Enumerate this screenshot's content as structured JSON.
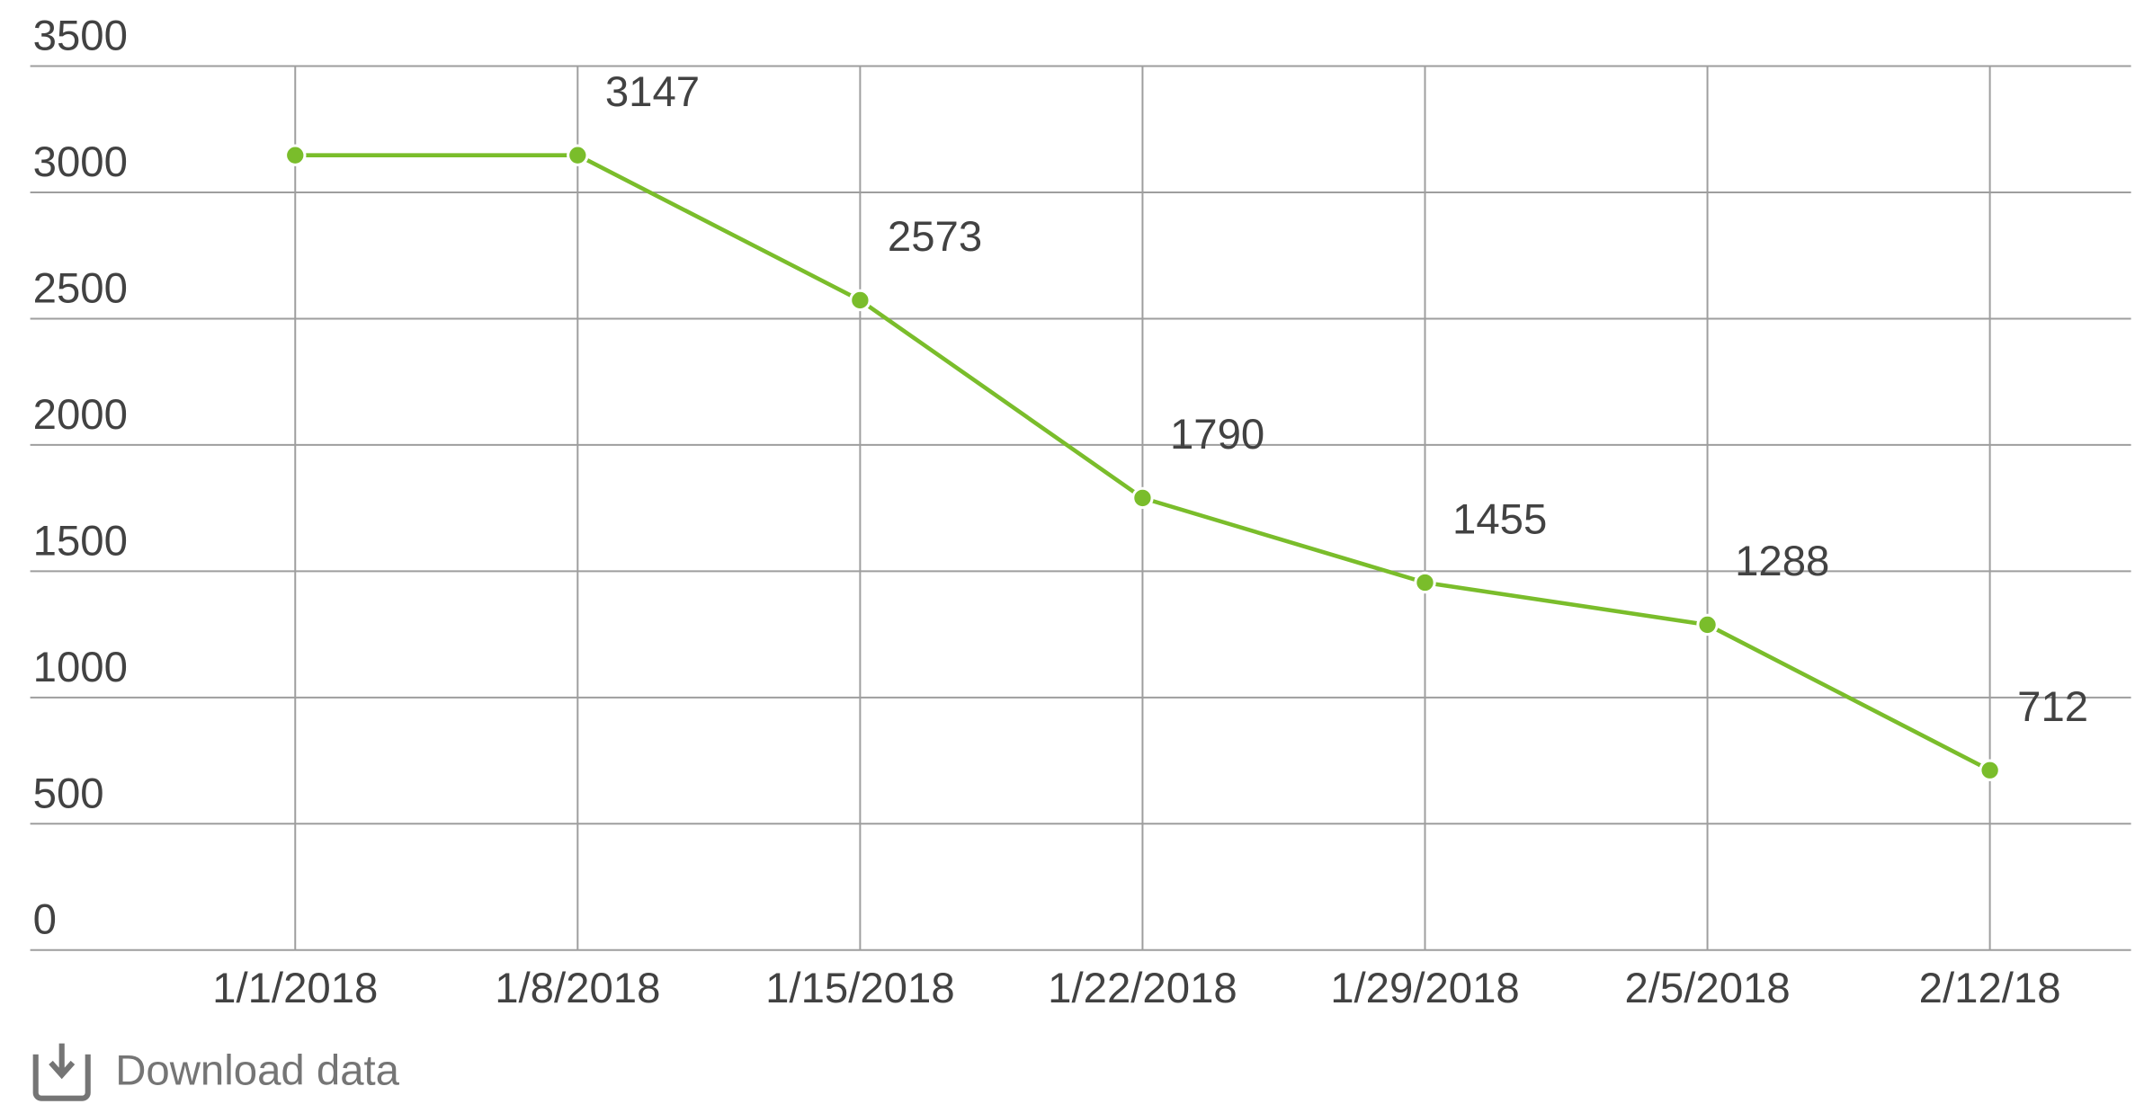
{
  "chart_data": {
    "type": "line",
    "categories": [
      "1/1/2018",
      "1/8/2018",
      "1/15/2018",
      "1/22/2018",
      "1/29/2018",
      "2/5/2018",
      "2/12/18"
    ],
    "series": [
      {
        "color": "#7abd2b",
        "values": [
          3147,
          3147,
          2573,
          1790,
          1455,
          1288,
          712
        ],
        "value_labels": [
          null,
          "3147",
          "2573",
          "1790",
          "1455",
          "1288",
          "712"
        ]
      }
    ],
    "ylim": [
      0,
      3500
    ],
    "yticks": [
      0,
      500,
      1000,
      1500,
      2000,
      2500,
      3000,
      3500
    ],
    "grid": true
  },
  "footer": {
    "download": "Download data"
  }
}
